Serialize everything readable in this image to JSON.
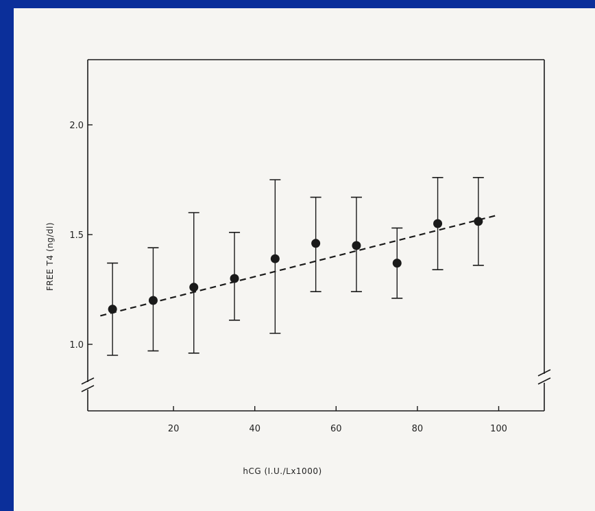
{
  "colors": {
    "slide_border": "#0b2f9a",
    "paper": "#f6f5f2",
    "ink": "#1a1a1a"
  },
  "chart_data": {
    "type": "scatter",
    "title": "",
    "xlabel": "hCG  (I.U./Lx1000)",
    "ylabel": "FREE T4  (ng/dl)",
    "xlim": [
      0,
      110
    ],
    "ylim": [
      0.8,
      2.3
    ],
    "y_axis_break": "below 1.0",
    "x_ticks": [
      20,
      40,
      60,
      80,
      100
    ],
    "x_tick_labels": [
      "20",
      "40",
      "60",
      "80",
      "100"
    ],
    "y_ticks": [
      1.0,
      1.5,
      2.0
    ],
    "y_tick_labels": [
      "1.0",
      "1.5",
      "2.0"
    ],
    "grid": false,
    "points": [
      {
        "x": 5,
        "y": 1.16,
        "err_low": 0.95,
        "err_high": 1.37
      },
      {
        "x": 15,
        "y": 1.2,
        "err_low": 0.97,
        "err_high": 1.44
      },
      {
        "x": 25,
        "y": 1.26,
        "err_low": 0.96,
        "err_high": 1.6
      },
      {
        "x": 35,
        "y": 1.3,
        "err_low": 1.11,
        "err_high": 1.51
      },
      {
        "x": 45,
        "y": 1.39,
        "err_low": 1.05,
        "err_high": 1.75
      },
      {
        "x": 55,
        "y": 1.46,
        "err_low": 1.24,
        "err_high": 1.67
      },
      {
        "x": 65,
        "y": 1.45,
        "err_low": 1.24,
        "err_high": 1.67
      },
      {
        "x": 75,
        "y": 1.37,
        "err_low": 1.21,
        "err_high": 1.53
      },
      {
        "x": 85,
        "y": 1.55,
        "err_low": 1.34,
        "err_high": 1.76
      },
      {
        "x": 95,
        "y": 1.56,
        "err_low": 1.36,
        "err_high": 1.76
      }
    ],
    "trend_line": {
      "style": "dashed",
      "x": [
        2,
        100
      ],
      "y": [
        1.13,
        1.59
      ]
    }
  }
}
